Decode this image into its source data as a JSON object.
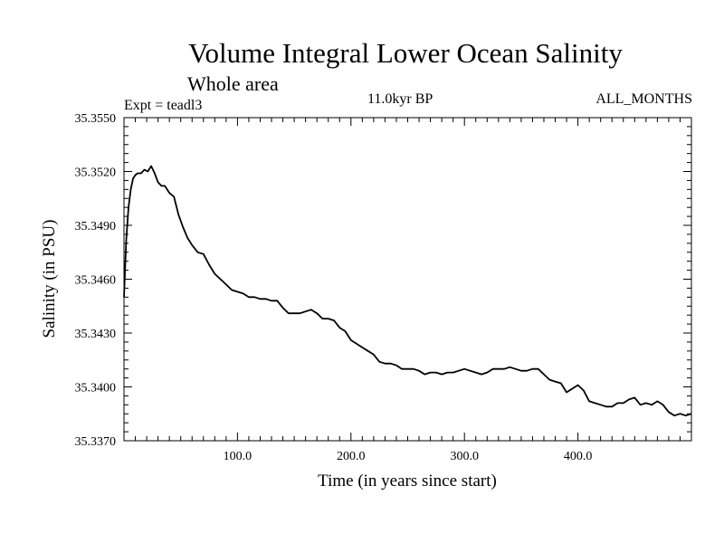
{
  "chart_data": {
    "type": "line",
    "title": "Volume Integral Lower Ocean Salinity",
    "subtitle": "Whole area",
    "experiment": "Expt = teadl3",
    "period": "11.0kyr BP",
    "months": "ALL_MONTHS",
    "xlabel": "Time (in years since start)",
    "ylabel": "Salinity (in PSU)",
    "xlim": [
      0,
      500
    ],
    "ylim": [
      35.337,
      35.355
    ],
    "x_ticks": [
      100,
      200,
      300,
      400
    ],
    "x_tick_labels": [
      "100.0",
      "200.0",
      "300.0",
      "400.0"
    ],
    "y_ticks": [
      35.337,
      35.34,
      35.343,
      35.346,
      35.349,
      35.352,
      35.355
    ],
    "y_tick_labels": [
      "35.3370",
      "35.3400",
      "35.3430",
      "35.3460",
      "35.3490",
      "35.3520",
      "35.3550"
    ],
    "series": [
      {
        "name": "Salinity",
        "color": "#000000",
        "x": [
          0,
          2,
          4,
          6,
          8,
          10,
          12,
          15,
          18,
          21,
          24,
          27,
          30,
          33,
          36,
          40,
          44,
          48,
          52,
          56,
          60,
          65,
          70,
          75,
          80,
          85,
          90,
          95,
          100,
          105,
          110,
          115,
          120,
          125,
          130,
          135,
          140,
          145,
          150,
          155,
          160,
          165,
          170,
          175,
          180,
          185,
          190,
          195,
          200,
          205,
          210,
          215,
          220,
          225,
          230,
          235,
          240,
          245,
          250,
          255,
          260,
          265,
          270,
          275,
          280,
          285,
          290,
          295,
          300,
          305,
          310,
          315,
          320,
          325,
          330,
          335,
          340,
          345,
          350,
          355,
          360,
          365,
          370,
          375,
          380,
          385,
          390,
          395,
          400,
          405,
          410,
          415,
          420,
          425,
          430,
          435,
          440,
          445,
          450,
          455,
          460,
          465,
          470,
          475,
          480,
          485,
          490,
          495,
          500
        ],
        "values": [
          35.345,
          35.3482,
          35.35,
          35.351,
          35.3516,
          35.3518,
          35.3519,
          35.3519,
          35.3521,
          35.352,
          35.3523,
          35.3519,
          35.3514,
          35.3512,
          35.3512,
          35.3508,
          35.3506,
          35.3496,
          35.3489,
          35.3483,
          35.3479,
          35.3475,
          35.3474,
          35.3468,
          35.3463,
          35.346,
          35.3457,
          35.3454,
          35.3453,
          35.3452,
          35.345,
          35.345,
          35.3449,
          35.3449,
          35.3448,
          35.3448,
          35.3444,
          35.3441,
          35.3441,
          35.3441,
          35.3442,
          35.3443,
          35.3441,
          35.3438,
          35.3438,
          35.3437,
          35.3433,
          35.3431,
          35.3426,
          35.3424,
          35.3422,
          35.342,
          35.3418,
          35.3414,
          35.3413,
          35.3413,
          35.3412,
          35.341,
          35.341,
          35.341,
          35.3409,
          35.3407,
          35.3408,
          35.3408,
          35.3407,
          35.3408,
          35.3408,
          35.3409,
          35.341,
          35.3409,
          35.3408,
          35.3407,
          35.3408,
          35.341,
          35.341,
          35.341,
          35.3411,
          35.341,
          35.3409,
          35.3409,
          35.341,
          35.341,
          35.3407,
          35.3404,
          35.3403,
          35.3402,
          35.3397,
          35.3399,
          35.3401,
          35.3398,
          35.3392,
          35.3391,
          35.339,
          35.3389,
          35.3389,
          35.3391,
          35.3391,
          35.3393,
          35.3394,
          35.339,
          35.3391,
          35.339,
          35.3392,
          35.339,
          35.3386,
          35.3384,
          35.3385,
          35.3384,
          35.3385
        ]
      }
    ]
  }
}
